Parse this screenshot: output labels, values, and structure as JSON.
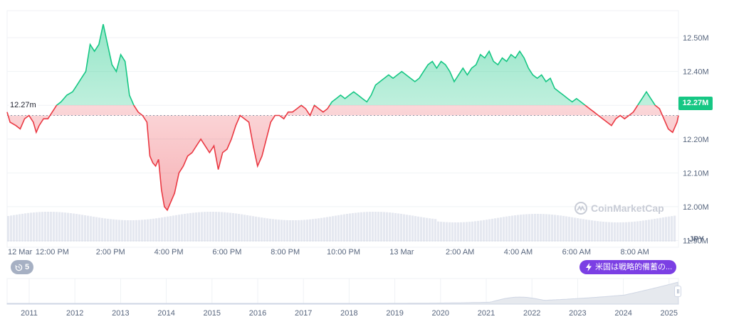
{
  "chart_data": {
    "type": "area",
    "currency_label": "JPY",
    "reference_value": 12.27,
    "reference_label": "12.27m",
    "current_price_label": "12.27M",
    "ylim": [
      11.88,
      12.58
    ],
    "y_ticks": [
      {
        "value": 12.5,
        "label": "12.50M"
      },
      {
        "value": 12.4,
        "label": "12.40M"
      },
      {
        "value": 12.3,
        "label": "12.30M"
      },
      {
        "value": 12.2,
        "label": "12.20M"
      },
      {
        "value": 12.1,
        "label": "12.10M"
      },
      {
        "value": 12.0,
        "label": "12.00M"
      },
      {
        "value": 11.9,
        "label": "11.90M"
      }
    ],
    "x_ticks": [
      {
        "t": 0.0,
        "label": "12 Mar"
      },
      {
        "t": 1.0,
        "label": "12:00 PM"
      },
      {
        "t": 3.0,
        "label": "2:00 PM"
      },
      {
        "t": 5.0,
        "label": "4:00 PM"
      },
      {
        "t": 7.0,
        "label": "6:00 PM"
      },
      {
        "t": 9.0,
        "label": "8:00 PM"
      },
      {
        "t": 11.0,
        "label": "10:00 PM"
      },
      {
        "t": 13.0,
        "label": "13 Mar"
      },
      {
        "t": 15.0,
        "label": "2:00 AM"
      },
      {
        "t": 17.0,
        "label": "4:00 AM"
      },
      {
        "t": 19.0,
        "label": "6:00 AM"
      },
      {
        "t": 21.0,
        "label": "8:00 AM"
      }
    ],
    "x_range": [
      -0.55,
      22.5
    ],
    "series": [
      {
        "points": [
          [
            -0.55,
            12.28
          ],
          [
            -0.45,
            12.25
          ],
          [
            -0.25,
            12.24
          ],
          [
            -0.1,
            12.23
          ],
          [
            0.05,
            12.26
          ],
          [
            0.2,
            12.27
          ],
          [
            0.35,
            12.25
          ],
          [
            0.45,
            12.22
          ],
          [
            0.55,
            12.24
          ],
          [
            0.7,
            12.26
          ],
          [
            0.85,
            12.26
          ],
          [
            1.0,
            12.28
          ],
          [
            1.15,
            12.3
          ],
          [
            1.3,
            12.31
          ],
          [
            1.5,
            12.33
          ],
          [
            1.7,
            12.34
          ],
          [
            1.85,
            12.36
          ],
          [
            2.0,
            12.38
          ],
          [
            2.15,
            12.4
          ],
          [
            2.3,
            12.48
          ],
          [
            2.45,
            12.46
          ],
          [
            2.6,
            12.48
          ],
          [
            2.75,
            12.54
          ],
          [
            2.9,
            12.48
          ],
          [
            3.05,
            12.42
          ],
          [
            3.2,
            12.4
          ],
          [
            3.35,
            12.45
          ],
          [
            3.5,
            12.43
          ],
          [
            3.65,
            12.33
          ],
          [
            3.8,
            12.3
          ],
          [
            3.95,
            12.28
          ],
          [
            4.1,
            12.27
          ],
          [
            4.25,
            12.25
          ],
          [
            4.35,
            12.15
          ],
          [
            4.45,
            12.13
          ],
          [
            4.55,
            12.12
          ],
          [
            4.65,
            12.14
          ],
          [
            4.75,
            12.05
          ],
          [
            4.85,
            12.0
          ],
          [
            4.95,
            11.99
          ],
          [
            5.05,
            12.01
          ],
          [
            5.2,
            12.04
          ],
          [
            5.35,
            12.1
          ],
          [
            5.5,
            12.12
          ],
          [
            5.65,
            12.15
          ],
          [
            5.8,
            12.16
          ],
          [
            5.95,
            12.18
          ],
          [
            6.1,
            12.2
          ],
          [
            6.25,
            12.18
          ],
          [
            6.4,
            12.16
          ],
          [
            6.55,
            12.18
          ],
          [
            6.7,
            12.11
          ],
          [
            6.85,
            12.16
          ],
          [
            7.0,
            12.17
          ],
          [
            7.15,
            12.2
          ],
          [
            7.3,
            12.24
          ],
          [
            7.45,
            12.27
          ],
          [
            7.6,
            12.26
          ],
          [
            7.75,
            12.25
          ],
          [
            7.9,
            12.18
          ],
          [
            8.05,
            12.12
          ],
          [
            8.2,
            12.15
          ],
          [
            8.35,
            12.2
          ],
          [
            8.5,
            12.25
          ],
          [
            8.65,
            12.27
          ],
          [
            8.8,
            12.27
          ],
          [
            8.95,
            12.26
          ],
          [
            9.1,
            12.28
          ],
          [
            9.25,
            12.28
          ],
          [
            9.4,
            12.29
          ],
          [
            9.55,
            12.3
          ],
          [
            9.7,
            12.29
          ],
          [
            9.85,
            12.27
          ],
          [
            10.0,
            12.3
          ],
          [
            10.15,
            12.29
          ],
          [
            10.3,
            12.28
          ],
          [
            10.45,
            12.29
          ],
          [
            10.6,
            12.31
          ],
          [
            10.75,
            12.32
          ],
          [
            10.9,
            12.33
          ],
          [
            11.05,
            12.32
          ],
          [
            11.2,
            12.33
          ],
          [
            11.35,
            12.34
          ],
          [
            11.5,
            12.33
          ],
          [
            11.65,
            12.32
          ],
          [
            11.8,
            12.31
          ],
          [
            11.95,
            12.33
          ],
          [
            12.1,
            12.36
          ],
          [
            12.25,
            12.37
          ],
          [
            12.4,
            12.38
          ],
          [
            12.55,
            12.39
          ],
          [
            12.7,
            12.38
          ],
          [
            12.85,
            12.39
          ],
          [
            13.0,
            12.4
          ],
          [
            13.15,
            12.39
          ],
          [
            13.3,
            12.38
          ],
          [
            13.45,
            12.37
          ],
          [
            13.6,
            12.38
          ],
          [
            13.75,
            12.4
          ],
          [
            13.9,
            12.42
          ],
          [
            14.05,
            12.43
          ],
          [
            14.2,
            12.41
          ],
          [
            14.35,
            12.43
          ],
          [
            14.5,
            12.42
          ],
          [
            14.65,
            12.4
          ],
          [
            14.8,
            12.37
          ],
          [
            14.95,
            12.39
          ],
          [
            15.1,
            12.41
          ],
          [
            15.25,
            12.39
          ],
          [
            15.4,
            12.41
          ],
          [
            15.55,
            12.42
          ],
          [
            15.7,
            12.45
          ],
          [
            15.85,
            12.44
          ],
          [
            16.0,
            12.46
          ],
          [
            16.15,
            12.43
          ],
          [
            16.3,
            12.42
          ],
          [
            16.45,
            12.44
          ],
          [
            16.6,
            12.43
          ],
          [
            16.75,
            12.45
          ],
          [
            16.9,
            12.44
          ],
          [
            17.05,
            12.46
          ],
          [
            17.2,
            12.44
          ],
          [
            17.35,
            12.41
          ],
          [
            17.5,
            12.39
          ],
          [
            17.65,
            12.38
          ],
          [
            17.8,
            12.39
          ],
          [
            17.95,
            12.37
          ],
          [
            18.1,
            12.38
          ],
          [
            18.25,
            12.35
          ],
          [
            18.4,
            12.34
          ],
          [
            18.55,
            12.33
          ],
          [
            18.7,
            12.32
          ],
          [
            18.85,
            12.31
          ],
          [
            19.0,
            12.32
          ],
          [
            19.15,
            12.31
          ],
          [
            19.3,
            12.3
          ],
          [
            19.45,
            12.29
          ],
          [
            19.6,
            12.28
          ],
          [
            19.75,
            12.27
          ],
          [
            19.9,
            12.26
          ],
          [
            20.05,
            12.25
          ],
          [
            20.2,
            12.24
          ],
          [
            20.35,
            12.26
          ],
          [
            20.5,
            12.27
          ],
          [
            20.65,
            12.26
          ],
          [
            20.8,
            12.27
          ],
          [
            20.95,
            12.28
          ],
          [
            21.1,
            12.3
          ],
          [
            21.25,
            12.32
          ],
          [
            21.4,
            12.34
          ],
          [
            21.55,
            12.32
          ],
          [
            21.7,
            12.3
          ],
          [
            21.85,
            12.29
          ],
          [
            22.0,
            12.26
          ],
          [
            22.15,
            12.23
          ],
          [
            22.3,
            12.22
          ],
          [
            22.45,
            12.25
          ],
          [
            22.5,
            12.27
          ]
        ]
      }
    ],
    "history_ticks": [
      "2011",
      "2012",
      "2013",
      "2014",
      "2015",
      "2016",
      "2017",
      "2018",
      "2019",
      "2020",
      "2021",
      "2022",
      "2023",
      "2024",
      "2025"
    ],
    "colors": {
      "up": "#16c784",
      "down": "#ea3943",
      "grid": "#eff2f5",
      "volume": "#cfd6e4"
    }
  },
  "watermark": "CoinMarketCap",
  "events_count": "5",
  "news_badge": "米国は戦略的備蓄の..."
}
